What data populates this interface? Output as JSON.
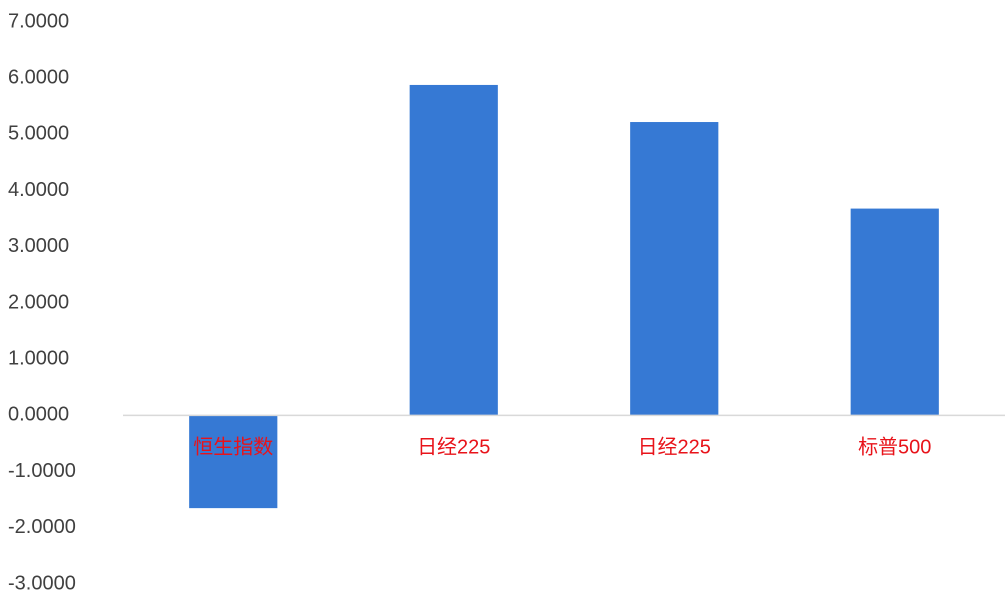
{
  "chart_data": {
    "type": "bar",
    "title": "",
    "xlabel": "",
    "ylabel": "",
    "categories": [
      "恒生指数",
      "日经225",
      "日经225",
      "标普500"
    ],
    "values": [
      -1.65,
      5.88,
      5.22,
      3.68
    ],
    "ylim": [
      -3,
      7
    ],
    "yticks": [
      "7.0000",
      "6.0000",
      "5.0000",
      "4.0000",
      "3.0000",
      "2.0000",
      "1.0000",
      "0.0000",
      "-1.0000",
      "-2.0000",
      "-3.0000"
    ],
    "grid": false,
    "legend": "none",
    "bar_color": "#3679D4",
    "category_label_color": "#E8131A",
    "axis_color": "#D9D9D9"
  }
}
